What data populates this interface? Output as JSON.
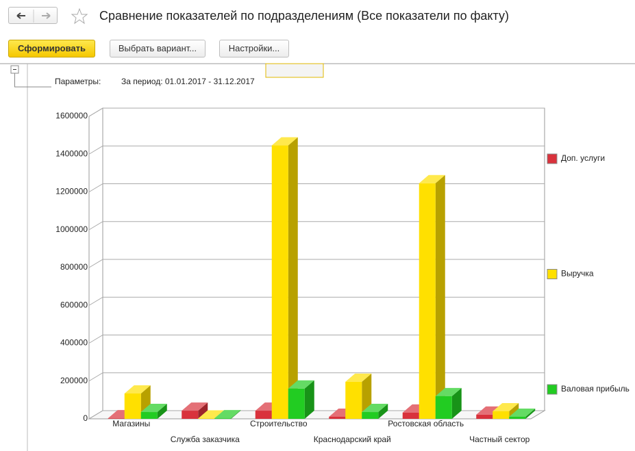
{
  "header": {
    "title": "Сравнение показателей по подразделениям (Все показатели по факту)"
  },
  "toolbar": {
    "buttons": [
      "Сформировать",
      "Выбрать вариант...",
      "Настройки..."
    ]
  },
  "parameters": {
    "label": "Параметры:",
    "period": "За период: 01.01.2017 - 31.12.2017"
  },
  "chart_data": {
    "type": "bar",
    "categories": [
      "Магазины",
      "Служба заказчика",
      "Строительство",
      "Краснодарский край",
      "Ростовская область",
      "Частный сектор"
    ],
    "series": [
      {
        "name": "Доп. услуги",
        "color": "#d9323c",
        "values": [
          3000,
          43000,
          43000,
          11000,
          33000,
          22000
        ]
      },
      {
        "name": "Выручка",
        "color": "#ffe000",
        "values": [
          134000,
          2000,
          1446000,
          196000,
          1246000,
          40000
        ]
      },
      {
        "name": "Валовая прибыль",
        "color": "#22cc22",
        "values": [
          36000,
          3000,
          160000,
          36000,
          120000,
          11000
        ]
      }
    ],
    "ylim": [
      0,
      1600000
    ],
    "yticks": [
      0,
      200000,
      400000,
      600000,
      800000,
      1000000,
      1200000,
      1400000,
      1600000
    ],
    "grid": true,
    "legend": "right"
  }
}
